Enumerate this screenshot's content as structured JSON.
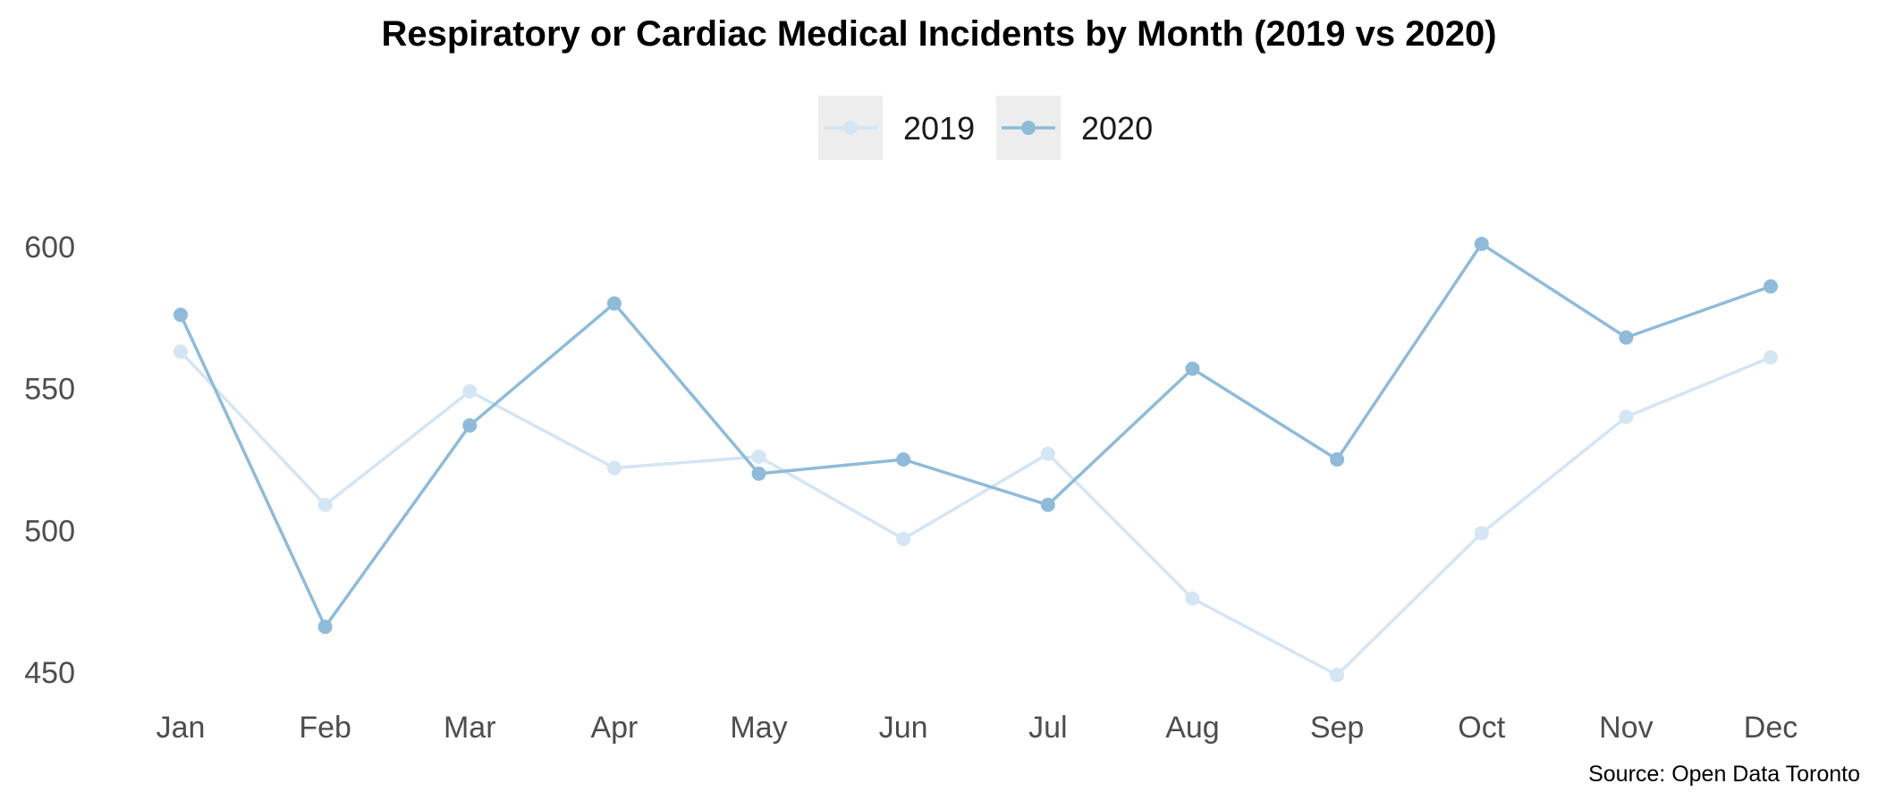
{
  "chart_data": {
    "type": "line",
    "title": "Respiratory or Cardiac Medical Incidents by Month (2019 vs 2020)",
    "caption": "Source: Open Data Toronto",
    "xlabel": "",
    "ylabel": "",
    "categories": [
      "Jan",
      "Feb",
      "Mar",
      "Apr",
      "May",
      "Jun",
      "Jul",
      "Aug",
      "Sep",
      "Oct",
      "Nov",
      "Dec"
    ],
    "yticks": [
      450,
      500,
      550,
      600
    ],
    "ylim": [
      440,
      615
    ],
    "grid": false,
    "legend_position": "top",
    "series": [
      {
        "name": "2019",
        "color": "#d4e5f4",
        "values": [
          563,
          509,
          549,
          522,
          526,
          497,
          527,
          476,
          449,
          499,
          540,
          561
        ]
      },
      {
        "name": "2020",
        "color": "#8fbbd9",
        "values": [
          576,
          466,
          537,
          580,
          520,
          525,
          509,
          557,
          525,
          601,
          568,
          586
        ]
      }
    ]
  }
}
